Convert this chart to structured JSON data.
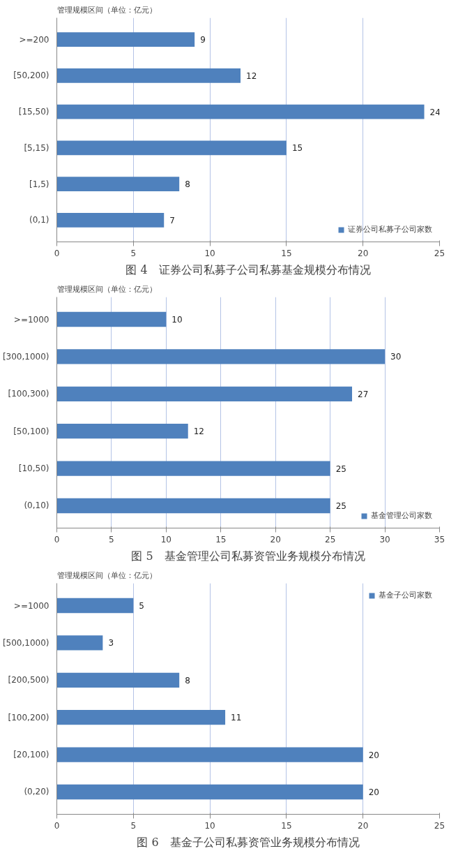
{
  "chart_data": [
    {
      "type": "bar",
      "orientation": "horizontal",
      "title": "图 4　证券公司私募子公司私募基金规模分布情况",
      "ylabel": "管理规模区间（单位：亿元）",
      "categories": [
        ">=200",
        "[50,200)",
        "[15,50)",
        "[5,15)",
        "[1,5)",
        "(0,1)"
      ],
      "series": [
        {
          "name": "证券公司私募子公司家数",
          "color": "#4f81bd",
          "values": [
            9,
            12,
            24,
            15,
            8,
            7
          ]
        }
      ],
      "xlim": [
        0,
        25
      ],
      "xticks": [
        0,
        5,
        10,
        15,
        20,
        25
      ],
      "grid": "x",
      "legend": "bottom right",
      "data_labels": true
    },
    {
      "type": "bar",
      "orientation": "horizontal",
      "title": "图 5　基金管理公司私募资管业务规模分布情况",
      "ylabel": "管理规模区间（单位：亿元）",
      "categories": [
        ">=1000",
        "[300,1000)",
        "[100,300)",
        "[50,100)",
        "[10,50)",
        "(0,10)"
      ],
      "series": [
        {
          "name": "基金管理公司家数",
          "color": "#4f81bd",
          "values": [
            10,
            30,
            27,
            12,
            25,
            25
          ]
        }
      ],
      "xlim": [
        0,
        35
      ],
      "xticks": [
        0,
        5,
        10,
        15,
        20,
        25,
        30,
        35
      ],
      "grid": "x",
      "legend": "bottom right",
      "data_labels": true
    },
    {
      "type": "bar",
      "orientation": "horizontal",
      "title": "图 6　基金子公司私募资管业务规模分布情况",
      "ylabel": "管理规模区间（单位：亿元）",
      "categories": [
        ">=1000",
        "[500,1000)",
        "[200,500)",
        "[100,200)",
        "[20,100)",
        "(0,20)"
      ],
      "series": [
        {
          "name": "基金子公司家数",
          "color": "#4f81bd",
          "values": [
            5,
            3,
            8,
            11,
            20,
            20
          ]
        }
      ],
      "xlim": [
        0,
        25
      ],
      "xticks": [
        0,
        5,
        10,
        15,
        20,
        25
      ],
      "grid": "x",
      "legend": "top right",
      "data_labels": true
    }
  ]
}
